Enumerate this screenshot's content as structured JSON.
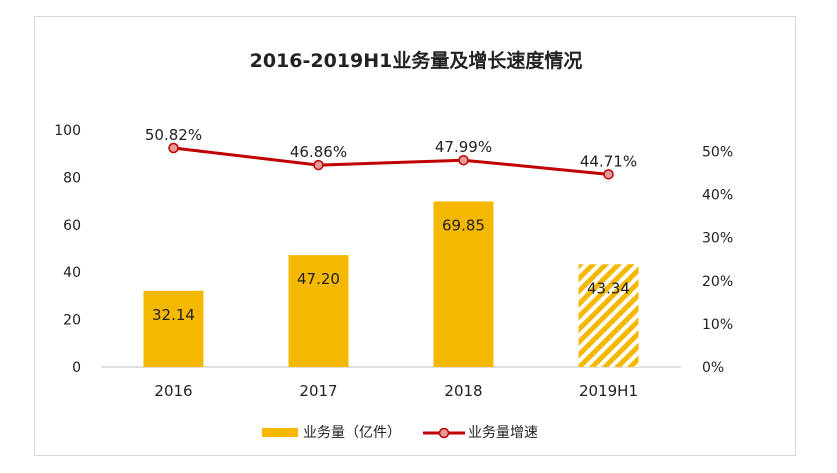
{
  "chart_data": {
    "type": "bar",
    "title": "2016-2019H1业务量及增长速度情况",
    "categories": [
      "2016",
      "2017",
      "2018",
      "2019H1"
    ],
    "series": [
      {
        "name": "业务量（亿件）",
        "type": "bar",
        "axis": "left",
        "values": [
          32.14,
          47.2,
          69.85,
          43.34
        ],
        "labels": [
          "32.14",
          "47.20",
          "69.85",
          "43.34"
        ],
        "hatched": [
          false,
          false,
          false,
          true
        ]
      },
      {
        "name": "业务量增速",
        "type": "line",
        "axis": "right",
        "values": [
          50.82,
          46.86,
          47.99,
          44.71
        ],
        "labels": [
          "50.82%",
          "46.86%",
          "47.99%",
          "44.71%"
        ]
      }
    ],
    "y_left": {
      "min": 0,
      "max": 100,
      "ticks": [
        0,
        20,
        40,
        60,
        80,
        100
      ],
      "tick_labels": [
        "0",
        "20",
        "40",
        "60",
        "80",
        "100"
      ]
    },
    "y_right": {
      "min": 0,
      "max": 55,
      "ticks": [
        0,
        10,
        20,
        30,
        40,
        50
      ],
      "tick_labels": [
        "0%",
        "10%",
        "20%",
        "30%",
        "40%",
        "50%"
      ]
    },
    "legend": {
      "position": "bottom",
      "entries": [
        "业务量（亿件）",
        "业务量增速"
      ]
    },
    "grid": false
  },
  "colors": {
    "bar": "#f5b800",
    "line": "#c00000",
    "marker_fill": "#e59a9a",
    "axis": "#bfbfbf",
    "frame": "#d9d9d9"
  }
}
